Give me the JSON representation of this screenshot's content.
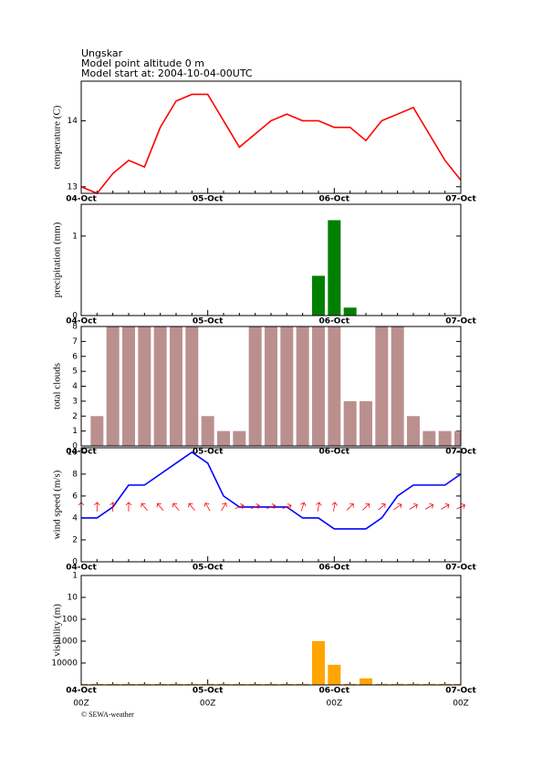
{
  "header": {
    "lines": [
      "Ungskar",
      "Model point altitude  0 m",
      "Model start at: 2004-10-04-00UTC"
    ]
  },
  "footer": "© SEWA-weather",
  "chart_data": [
    {
      "type": "line",
      "y_label": "temperature (C)",
      "color": "#ff0000",
      "categories": [
        "04-Oct",
        null,
        null,
        null,
        null,
        null,
        null,
        null,
        "05-Oct",
        null,
        null,
        null,
        null,
        null,
        null,
        null,
        "06-Oct",
        null,
        null,
        null,
        null,
        null,
        null,
        null,
        "07-Oct"
      ],
      "values": [
        13.0,
        12.9,
        13.2,
        13.4,
        13.3,
        13.9,
        14.3,
        14.4,
        14.4,
        14.0,
        13.6,
        13.8,
        14.0,
        14.1,
        14.0,
        14.0,
        13.9,
        13.9,
        13.7,
        14.0,
        14.1,
        14.2,
        13.8,
        13.4,
        13.1
      ],
      "ylim": [
        12.9,
        14.6
      ],
      "yticks": [
        13,
        14
      ]
    },
    {
      "type": "bar",
      "y_label": "precipitation (mm)",
      "color": "#008000",
      "categories": [
        "04-Oct",
        null,
        null,
        null,
        null,
        null,
        null,
        null,
        "05-Oct",
        null,
        null,
        null,
        null,
        null,
        null,
        null,
        "06-Oct",
        null,
        null,
        null,
        null,
        null,
        null,
        null,
        "07-Oct"
      ],
      "values": [
        null,
        null,
        null,
        null,
        null,
        null,
        null,
        null,
        null,
        null,
        null,
        null,
        null,
        null,
        null,
        0.5,
        1.2,
        0.1,
        null,
        null,
        null,
        null,
        null,
        null,
        null
      ],
      "ylim": [
        0,
        1.4
      ],
      "yticks": [
        0,
        1
      ]
    },
    {
      "type": "bar",
      "y_label": "total clouds",
      "color": "#bc8f8f",
      "categories": [
        "04-Oct",
        null,
        null,
        null,
        null,
        null,
        null,
        null,
        "05-Oct",
        null,
        null,
        null,
        null,
        null,
        null,
        null,
        "06-Oct",
        null,
        null,
        null,
        null,
        null,
        null,
        null,
        "07-Oct"
      ],
      "values": [
        null,
        2,
        8,
        8,
        8,
        8,
        8,
        8,
        2,
        1,
        1,
        8,
        8,
        8,
        8,
        8,
        8,
        3,
        3,
        8,
        8,
        2,
        1,
        1,
        1
      ],
      "ylim": [
        0,
        8
      ],
      "yticks": [
        0,
        1,
        2,
        3,
        4,
        5,
        6,
        7,
        8
      ]
    },
    {
      "type": "line",
      "y_label": "wind speed (m/s)",
      "color": "#0000ff",
      "categories": [
        "04-Oct",
        null,
        null,
        null,
        null,
        null,
        null,
        null,
        "05-Oct",
        null,
        null,
        null,
        null,
        null,
        null,
        null,
        "06-Oct",
        null,
        null,
        null,
        null,
        null,
        null,
        null,
        "07-Oct"
      ],
      "values": [
        4,
        4,
        5,
        7,
        7,
        8,
        9,
        10,
        9,
        6,
        5,
        5,
        5,
        5,
        4,
        4,
        3,
        3,
        3,
        4,
        6,
        7,
        7,
        7,
        8
      ],
      "arrows": {
        "color": "#ff0000",
        "angles": [
          0,
          0,
          0,
          0,
          -40,
          -40,
          -40,
          -40,
          -30,
          30,
          70,
          70,
          70,
          70,
          20,
          10,
          10,
          45,
          45,
          50,
          55,
          60,
          60,
          60,
          65
        ]
      },
      "ylim": [
        0,
        10.4
      ],
      "yticks": [
        0,
        2,
        4,
        6,
        8,
        10
      ]
    },
    {
      "type": "bar",
      "y_label": "visibility (m)",
      "color": "#ffa500",
      "log_scale": true,
      "inverted": true,
      "categories": [
        "04-Oct",
        null,
        null,
        null,
        null,
        null,
        null,
        null,
        "05-Oct",
        null,
        null,
        null,
        null,
        null,
        null,
        null,
        "06-Oct",
        null,
        null,
        null,
        null,
        null,
        null,
        null,
        "07-Oct"
      ],
      "x_sublabels": [
        "00Z",
        "00Z",
        "00Z",
        "00Z"
      ],
      "values": [
        90000,
        90000,
        90000,
        90000,
        90000,
        90000,
        90000,
        90000,
        90000,
        90000,
        90000,
        90000,
        90000,
        90000,
        90000,
        1000,
        12000,
        90000,
        50000,
        90000,
        90000,
        90000,
        90000,
        90000,
        90000
      ],
      "ylim": [
        1,
        100000
      ],
      "yticks": [
        1,
        10,
        100,
        1000,
        10000
      ]
    }
  ]
}
